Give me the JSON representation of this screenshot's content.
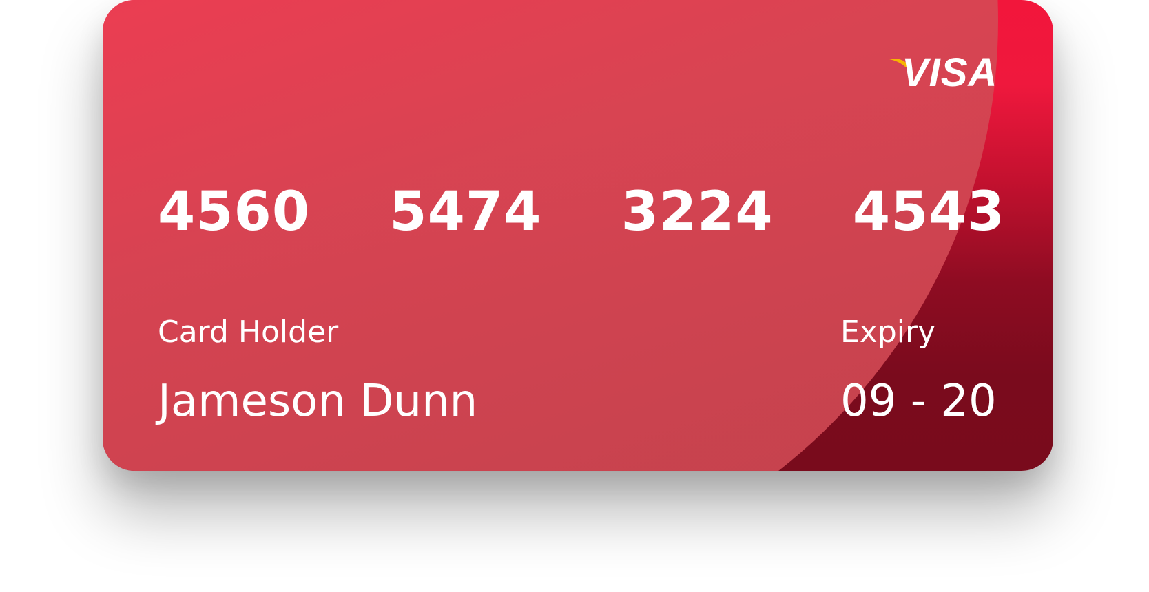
{
  "card": {
    "brand": "VISA",
    "number_groups": [
      "4560",
      "5474",
      "3224",
      "4543"
    ],
    "holder_label": "Card Holder",
    "holder_name": "Jameson Dunn",
    "expiry_label": "Expiry",
    "expiry_value": "09 - 20"
  },
  "colors": {
    "card_top": "#f2163b",
    "card_bottom": "#790b1c",
    "circle": "#f13c53",
    "text": "#ffffff",
    "swoosh": "#f7b600"
  },
  "icons": {
    "brand_logo": "visa-logo-icon"
  }
}
